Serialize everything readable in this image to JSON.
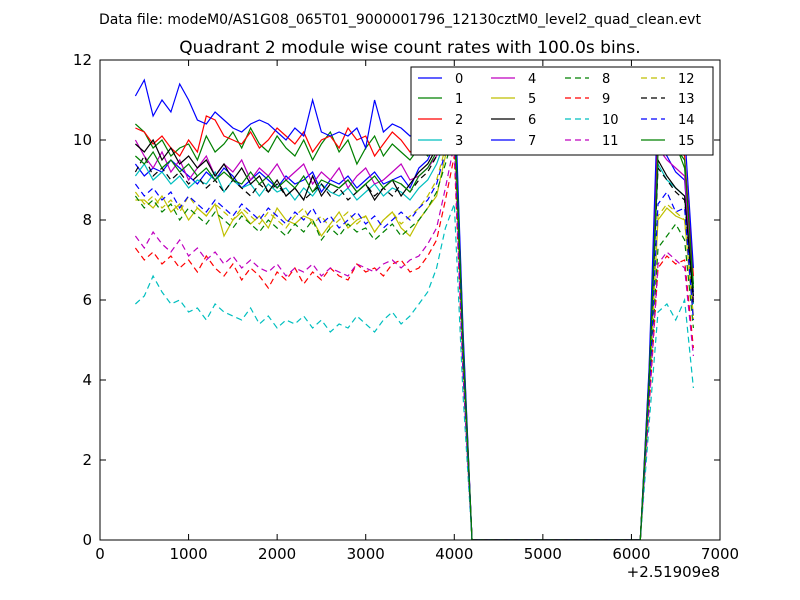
{
  "chart_data": {
    "type": "line",
    "suptitle": "Data file: modeM0/AS1G08_065T01_9000001796_12130cztM0_level2_quad_clean.evt",
    "title": "Quadrant 2 module wise count rates with 100.0s bins.",
    "xlabel": "",
    "ylabel": "",
    "x_offset_label": "+2.51909e8",
    "xlim": [
      0,
      7000
    ],
    "ylim": [
      0,
      12
    ],
    "xticks": [
      0,
      1000,
      2000,
      3000,
      4000,
      5000,
      6000,
      7000
    ],
    "yticks": [
      0,
      2,
      4,
      6,
      8,
      10,
      12
    ],
    "x": [
      400,
      500,
      600,
      700,
      800,
      900,
      1000,
      1100,
      1200,
      1300,
      1400,
      1500,
      1600,
      1700,
      1800,
      1900,
      2000,
      2100,
      2200,
      2300,
      2400,
      2500,
      2600,
      2700,
      2800,
      2900,
      3000,
      3100,
      3200,
      3300,
      3400,
      3500,
      3600,
      3700,
      3800,
      3900,
      4000,
      4100,
      4200,
      4300,
      4400,
      4500,
      4600,
      4700,
      4800,
      4900,
      5000,
      5100,
      5200,
      5300,
      5400,
      5500,
      5600,
      5700,
      5800,
      5900,
      6000,
      6100,
      6200,
      6300,
      6400,
      6500,
      6600,
      6700
    ],
    "legend_position": "top-right",
    "series": [
      {
        "name": "0",
        "color": "#0000ff",
        "dash": "solid",
        "values": [
          9.4,
          9.1,
          9.3,
          9.2,
          9.5,
          9.3,
          9.1,
          8.9,
          9.2,
          9.0,
          9.3,
          9.1,
          8.8,
          9.0,
          9.2,
          9.0,
          8.8,
          9.1,
          8.9,
          9.0,
          9.2,
          8.7,
          9.0,
          8.9,
          9.1,
          8.8,
          9.0,
          9.2,
          8.9,
          9.0,
          9.1,
          8.8,
          9.3,
          9.5,
          10.0,
          10.5,
          11.3,
          5.0,
          0.0,
          0.0,
          0.0,
          0.0,
          0.0,
          0.0,
          0.0,
          0.0,
          0.0,
          0.0,
          0.0,
          0.0,
          0.0,
          0.0,
          0.0,
          0.0,
          0.0,
          0.0,
          0.0,
          0.0,
          4.0,
          10.0,
          9.6,
          9.2,
          9.0,
          6.2
        ]
      },
      {
        "name": "1",
        "color": "#008000",
        "dash": "solid",
        "values": [
          10.4,
          10.2,
          9.8,
          10.0,
          9.6,
          9.8,
          9.9,
          9.5,
          10.1,
          9.7,
          9.9,
          10.2,
          9.8,
          10.3,
          9.9,
          9.7,
          10.1,
          9.8,
          9.6,
          10.0,
          9.5,
          9.9,
          10.2,
          9.7,
          10.0,
          9.4,
          9.8,
          10.1,
          9.6,
          9.9,
          9.7,
          9.5,
          9.8,
          9.6,
          10.0,
          10.4,
          10.9,
          4.8,
          0.0,
          0.0,
          0.0,
          0.0,
          0.0,
          0.0,
          0.0,
          0.0,
          0.0,
          0.0,
          0.0,
          0.0,
          0.0,
          0.0,
          0.0,
          0.0,
          0.0,
          0.0,
          0.0,
          0.0,
          4.1,
          9.9,
          9.7,
          9.9,
          9.3,
          6.4
        ]
      },
      {
        "name": "2",
        "color": "#ff0000",
        "dash": "solid",
        "values": [
          10.3,
          10.2,
          9.9,
          10.1,
          9.8,
          9.6,
          10.0,
          9.7,
          10.6,
          10.5,
          10.1,
          10.0,
          9.9,
          10.2,
          9.8,
          10.0,
          10.3,
          10.1,
          9.9,
          10.2,
          9.7,
          10.0,
          10.1,
          9.8,
          10.3,
          10.0,
          10.1,
          9.6,
          9.9,
          10.2,
          10.0,
          9.7,
          9.9,
          10.0,
          10.2,
          10.6,
          11.0,
          5.1,
          0.0,
          0.0,
          0.0,
          0.0,
          0.0,
          0.0,
          0.0,
          0.0,
          0.0,
          0.0,
          0.0,
          0.0,
          0.0,
          0.0,
          0.0,
          0.0,
          0.0,
          0.0,
          0.0,
          0.0,
          4.2,
          10.3,
          10.0,
          9.9,
          9.6,
          6.6
        ]
      },
      {
        "name": "3",
        "color": "#00bfbf",
        "dash": "solid",
        "values": [
          9.1,
          9.4,
          9.0,
          9.2,
          8.9,
          9.1,
          8.8,
          9.0,
          8.9,
          9.2,
          8.7,
          9.0,
          8.8,
          8.9,
          8.6,
          8.9,
          8.7,
          8.8,
          8.5,
          8.8,
          8.6,
          8.9,
          8.7,
          8.6,
          8.8,
          8.5,
          8.7,
          8.9,
          8.6,
          8.8,
          8.7,
          8.5,
          8.8,
          9.0,
          9.4,
          10.0,
          10.6,
          4.7,
          0.0,
          0.0,
          0.0,
          0.0,
          0.0,
          0.0,
          0.0,
          0.0,
          0.0,
          0.0,
          0.0,
          0.0,
          0.0,
          0.0,
          0.0,
          0.0,
          0.0,
          0.0,
          0.0,
          0.0,
          3.9,
          9.4,
          9.0,
          8.8,
          8.6,
          5.9
        ]
      },
      {
        "name": "4",
        "color": "#bf00bf",
        "dash": "solid",
        "values": [
          10.0,
          9.6,
          9.3,
          9.7,
          9.2,
          9.5,
          9.0,
          9.3,
          9.6,
          9.1,
          9.4,
          9.2,
          9.5,
          9.0,
          9.3,
          9.1,
          9.4,
          9.0,
          9.2,
          9.4,
          8.9,
          9.2,
          9.0,
          9.3,
          8.8,
          9.1,
          9.3,
          8.9,
          9.0,
          9.2,
          9.4,
          9.0,
          9.1,
          9.3,
          9.6,
          10.2,
          10.8,
          4.9,
          0.0,
          0.0,
          0.0,
          0.0,
          0.0,
          0.0,
          0.0,
          0.0,
          0.0,
          0.0,
          0.0,
          0.0,
          0.0,
          0.0,
          0.0,
          0.0,
          0.0,
          0.0,
          0.0,
          0.0,
          4.0,
          9.8,
          9.5,
          9.3,
          9.1,
          6.0
        ]
      },
      {
        "name": "5",
        "color": "#bfbf00",
        "dash": "solid",
        "values": [
          8.5,
          8.5,
          8.3,
          8.6,
          8.2,
          8.4,
          8.0,
          8.3,
          8.1,
          8.4,
          7.6,
          8.0,
          8.2,
          7.9,
          8.1,
          7.8,
          8.3,
          8.0,
          7.9,
          8.1,
          8.0,
          7.6,
          7.9,
          8.2,
          7.8,
          8.0,
          8.1,
          7.7,
          8.0,
          8.2,
          7.8,
          7.6,
          8.0,
          8.3,
          8.6,
          9.6,
          10.4,
          4.6,
          0.0,
          0.0,
          0.0,
          0.0,
          0.0,
          0.0,
          0.0,
          0.0,
          0.0,
          0.0,
          0.0,
          0.0,
          0.0,
          0.0,
          0.0,
          0.0,
          0.0,
          0.0,
          0.0,
          0.0,
          3.8,
          8.0,
          8.3,
          8.1,
          8.0,
          5.6
        ]
      },
      {
        "name": "6",
        "color": "#000000",
        "dash": "solid",
        "values": [
          9.9,
          9.7,
          10.0,
          9.5,
          9.8,
          9.4,
          9.6,
          9.3,
          9.5,
          9.1,
          9.4,
          9.0,
          9.3,
          8.9,
          9.1,
          8.7,
          9.0,
          8.6,
          8.8,
          8.5,
          9.1,
          8.6,
          8.9,
          8.8,
          9.0,
          8.7,
          8.9,
          8.5,
          8.8,
          9.0,
          8.6,
          8.9,
          9.2,
          9.4,
          9.8,
          10.3,
          10.9,
          4.9,
          0.0,
          0.0,
          0.0,
          0.0,
          0.0,
          0.0,
          0.0,
          0.0,
          0.0,
          0.0,
          0.0,
          0.0,
          0.0,
          0.0,
          0.0,
          0.0,
          0.0,
          0.0,
          0.0,
          0.0,
          4.1,
          9.5,
          9.1,
          8.8,
          8.6,
          6.1
        ]
      },
      {
        "name": "7",
        "color": "#0000ff",
        "dash": "solid",
        "values": [
          11.1,
          11.5,
          10.6,
          11.0,
          10.7,
          11.4,
          11.0,
          10.5,
          10.4,
          10.7,
          10.5,
          10.3,
          10.2,
          10.4,
          10.5,
          10.4,
          10.2,
          10.0,
          10.3,
          10.1,
          11.0,
          10.2,
          10.1,
          10.2,
          10.1,
          10.3,
          9.8,
          11.0,
          10.2,
          10.4,
          10.3,
          10.1,
          10.2,
          10.3,
          10.6,
          11.0,
          11.5,
          5.2,
          0.0,
          0.0,
          0.0,
          0.0,
          0.0,
          0.0,
          0.0,
          0.0,
          0.0,
          0.0,
          0.0,
          0.0,
          0.0,
          0.0,
          0.0,
          0.0,
          0.0,
          0.0,
          0.0,
          0.0,
          4.3,
          11.1,
          10.6,
          10.2,
          10.2,
          6.8
        ]
      },
      {
        "name": "8",
        "color": "#008000",
        "dash": "dashed",
        "values": [
          8.6,
          8.3,
          8.5,
          8.2,
          8.4,
          8.0,
          8.3,
          8.1,
          7.9,
          8.2,
          8.0,
          7.8,
          8.1,
          7.9,
          7.7,
          8.0,
          7.8,
          7.6,
          7.9,
          7.7,
          8.0,
          7.5,
          7.8,
          7.6,
          7.9,
          7.7,
          7.8,
          7.5,
          7.7,
          7.9,
          7.6,
          7.8,
          8.0,
          8.3,
          8.7,
          9.4,
          10.2,
          4.4,
          0.0,
          0.0,
          0.0,
          0.0,
          0.0,
          0.0,
          0.0,
          0.0,
          0.0,
          0.0,
          0.0,
          0.0,
          0.0,
          0.0,
          0.0,
          0.0,
          0.0,
          0.0,
          0.0,
          0.0,
          3.6,
          7.3,
          7.6,
          7.9,
          7.5,
          5.3
        ]
      },
      {
        "name": "9",
        "color": "#ff0000",
        "dash": "dashed",
        "values": [
          7.3,
          7.0,
          7.2,
          6.9,
          7.1,
          6.8,
          7.0,
          6.7,
          7.1,
          6.8,
          6.6,
          6.9,
          6.5,
          6.8,
          6.6,
          6.3,
          6.7,
          6.5,
          6.8,
          6.4,
          6.7,
          6.5,
          6.8,
          6.6,
          6.5,
          6.9,
          6.7,
          6.8,
          6.6,
          6.9,
          7.0,
          6.7,
          6.8,
          7.1,
          7.5,
          8.5,
          9.6,
          4.1,
          0.0,
          0.0,
          0.0,
          0.0,
          0.0,
          0.0,
          0.0,
          0.0,
          0.0,
          0.0,
          0.0,
          0.0,
          0.0,
          0.0,
          0.0,
          0.0,
          0.0,
          0.0,
          0.0,
          0.0,
          3.3,
          6.8,
          7.1,
          6.9,
          7.0,
          4.8
        ]
      },
      {
        "name": "10",
        "color": "#00bfbf",
        "dash": "dashed",
        "values": [
          5.9,
          6.1,
          6.6,
          6.2,
          5.9,
          6.0,
          5.7,
          5.8,
          5.5,
          5.9,
          5.7,
          5.6,
          5.5,
          5.8,
          5.4,
          5.6,
          5.3,
          5.5,
          5.4,
          5.6,
          5.3,
          5.5,
          5.2,
          5.4,
          5.3,
          5.6,
          5.4,
          5.2,
          5.5,
          5.7,
          5.4,
          5.6,
          5.9,
          6.2,
          6.8,
          7.8,
          8.4,
          3.6,
          0.0,
          0.0,
          0.0,
          0.0,
          0.0,
          0.0,
          0.0,
          0.0,
          0.0,
          0.0,
          0.0,
          0.0,
          0.0,
          0.0,
          0.0,
          0.0,
          0.0,
          0.0,
          0.0,
          0.0,
          2.9,
          5.7,
          5.9,
          5.5,
          6.0,
          3.8
        ]
      },
      {
        "name": "11",
        "color": "#bf00bf",
        "dash": "dashed",
        "values": [
          7.6,
          7.3,
          7.7,
          7.4,
          7.2,
          7.5,
          7.1,
          7.3,
          7.0,
          7.2,
          6.9,
          7.1,
          6.8,
          7.0,
          6.8,
          6.7,
          6.9,
          6.6,
          6.8,
          6.7,
          6.9,
          6.6,
          6.8,
          6.7,
          6.6,
          6.9,
          6.8,
          6.7,
          6.9,
          7.0,
          6.8,
          7.0,
          7.1,
          7.4,
          7.8,
          8.8,
          9.9,
          4.2,
          0.0,
          0.0,
          0.0,
          0.0,
          0.0,
          0.0,
          0.0,
          0.0,
          0.0,
          0.0,
          0.0,
          0.0,
          0.0,
          0.0,
          0.0,
          0.0,
          0.0,
          0.0,
          0.0,
          0.0,
          3.4,
          6.9,
          7.2,
          7.0,
          6.8,
          4.6
        ]
      },
      {
        "name": "12",
        "color": "#bfbf00",
        "dash": "dashed",
        "values": [
          8.7,
          8.4,
          8.6,
          8.3,
          8.5,
          8.2,
          8.6,
          8.3,
          8.1,
          8.4,
          8.2,
          8.0,
          8.3,
          8.1,
          7.9,
          8.2,
          8.0,
          7.8,
          8.1,
          8.3,
          7.9,
          8.1,
          7.8,
          8.0,
          8.2,
          7.9,
          8.1,
          7.7,
          8.0,
          8.2,
          7.9,
          8.1,
          8.3,
          8.6,
          9.0,
          9.8,
          10.6,
          4.6,
          0.0,
          0.0,
          0.0,
          0.0,
          0.0,
          0.0,
          0.0,
          0.0,
          0.0,
          0.0,
          0.0,
          0.0,
          0.0,
          0.0,
          0.0,
          0.0,
          0.0,
          0.0,
          0.0,
          0.0,
          3.7,
          8.1,
          8.4,
          8.2,
          8.0,
          5.5
        ]
      },
      {
        "name": "13",
        "color": "#000000",
        "dash": "dashed",
        "values": [
          9.2,
          9.6,
          9.1,
          9.3,
          9.0,
          9.2,
          8.9,
          9.1,
          8.8,
          9.0,
          8.7,
          9.0,
          8.8,
          8.6,
          8.9,
          8.7,
          8.9,
          8.6,
          8.8,
          8.5,
          8.7,
          8.9,
          8.6,
          8.8,
          8.5,
          8.7,
          8.9,
          8.6,
          8.8,
          8.6,
          8.9,
          8.7,
          9.0,
          9.2,
          9.6,
          10.2,
          10.8,
          4.8,
          0.0,
          0.0,
          0.0,
          0.0,
          0.0,
          0.0,
          0.0,
          0.0,
          0.0,
          0.0,
          0.0,
          0.0,
          0.0,
          0.0,
          0.0,
          0.0,
          0.0,
          0.0,
          0.0,
          0.0,
          4.0,
          9.3,
          9.0,
          8.7,
          8.5,
          5.9
        ]
      },
      {
        "name": "14",
        "color": "#0000ff",
        "dash": "dashed",
        "values": [
          8.9,
          8.6,
          8.8,
          8.5,
          8.7,
          8.3,
          8.6,
          8.4,
          8.2,
          8.5,
          8.3,
          8.1,
          8.4,
          8.2,
          8.0,
          8.3,
          8.1,
          7.9,
          8.2,
          8.0,
          8.3,
          7.9,
          8.1,
          7.8,
          8.0,
          8.2,
          7.9,
          8.1,
          7.8,
          8.0,
          8.2,
          8.0,
          8.3,
          8.5,
          8.9,
          9.7,
          10.5,
          4.5,
          0.0,
          0.0,
          0.0,
          0.0,
          0.0,
          0.0,
          0.0,
          0.0,
          0.0,
          0.0,
          0.0,
          0.0,
          0.0,
          0.0,
          0.0,
          0.0,
          0.0,
          0.0,
          0.0,
          0.0,
          3.7,
          8.4,
          8.7,
          8.2,
          8.3,
          5.5
        ]
      },
      {
        "name": "15",
        "color": "#008000",
        "dash": "solid",
        "values": [
          9.6,
          9.4,
          9.7,
          9.3,
          9.5,
          9.2,
          9.4,
          9.1,
          9.3,
          9.0,
          9.2,
          9.0,
          8.9,
          9.2,
          8.9,
          9.1,
          8.8,
          9.0,
          8.8,
          9.1,
          8.7,
          9.0,
          8.9,
          8.8,
          9.0,
          8.7,
          8.9,
          9.1,
          8.8,
          9.0,
          8.9,
          8.7,
          9.1,
          9.3,
          9.7,
          10.3,
          10.9,
          4.9,
          0.0,
          0.0,
          0.0,
          0.0,
          0.0,
          0.0,
          0.0,
          0.0,
          0.0,
          0.0,
          0.0,
          0.0,
          0.0,
          0.0,
          0.0,
          0.0,
          0.0,
          0.0,
          0.0,
          0.0,
          4.0,
          9.7,
          9.8,
          9.8,
          9.5,
          6.3
        ]
      }
    ]
  }
}
